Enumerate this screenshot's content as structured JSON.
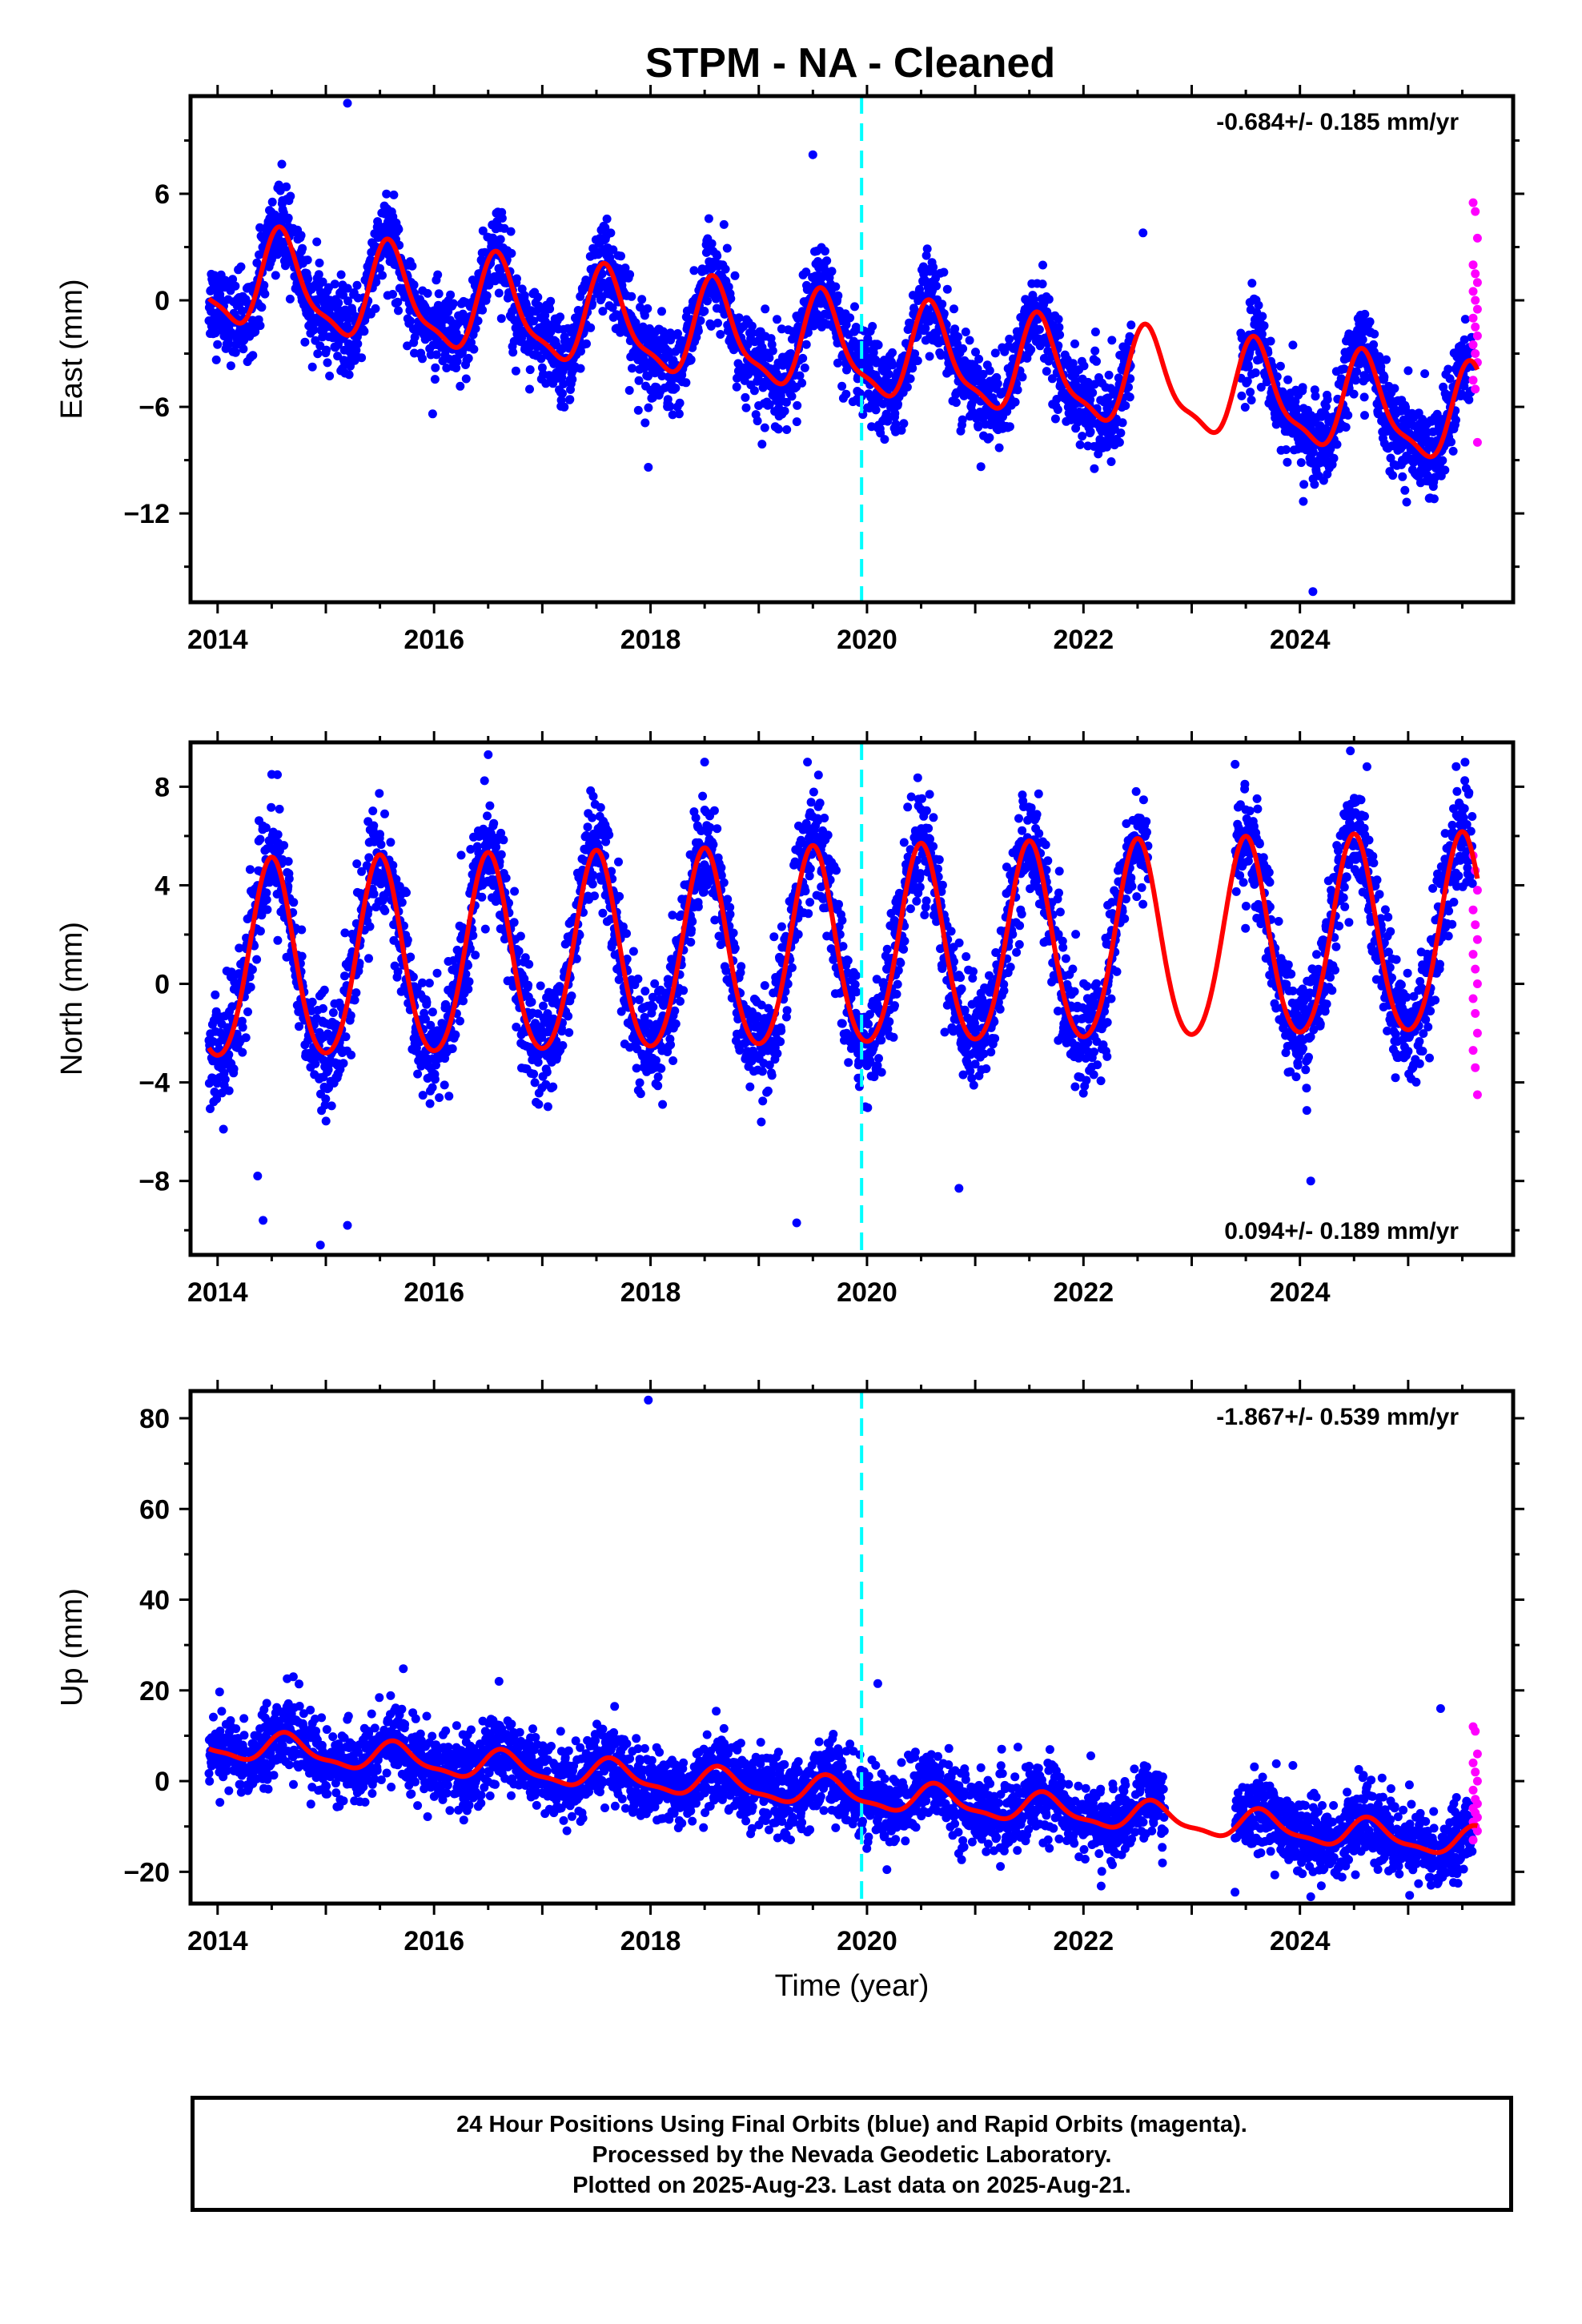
{
  "figure": {
    "title": "STPM  - NA - Cleaned",
    "xlabel": "Time (year)"
  },
  "colors": {
    "final_orbits": "#0000ff",
    "rapid_orbits": "#ff00ff",
    "model": "#ff0000",
    "event_line": "#00ffff"
  },
  "footer": {
    "line1": "24 Hour Positions Using Final Orbits (blue) and Rapid Orbits (magenta).",
    "line2": "Processed by the Nevada Geodetic Laboratory.",
    "line3": "Plotted on 2025-Aug-23. Last data on 2025-Aug-21."
  },
  "chart_data": [
    {
      "type": "scatter",
      "component": "east",
      "ylabel": "East (mm)",
      "rate": "-0.684+/- 0.185 mm/yr",
      "rate_position": "top-right",
      "xlim": [
        2013.75,
        2025.97
      ],
      "ylim": [
        -17,
        11.5
      ],
      "xticks": [
        2014,
        2016,
        2018,
        2020,
        2022,
        2024
      ],
      "yticks": [
        -12,
        -6,
        0,
        6
      ],
      "event_line_x": 2019.95,
      "model": {
        "offset": 1.2,
        "trend": -0.684,
        "annual_amp": 2.6,
        "annual_peak": 0.6,
        "semi_amp": 0.8,
        "semi_peak": 0.55
      },
      "scatter_sd": 1.2,
      "data_start": 2013.92,
      "gap": [
        2022.45,
        2023.45
      ],
      "rapid": {
        "start": 2025.6,
        "end": 2025.64,
        "values": [
          5.5,
          5.0,
          3.5,
          2.0,
          1.5,
          1.0,
          0.5,
          0.0,
          -0.5,
          -1.0,
          -1.5,
          -2.0,
          -2.5,
          -3.0,
          -3.5,
          -4.5,
          -5.0,
          -8.0
        ]
      },
      "outliers": [
        {
          "x": 2015.2,
          "y": 11.1
        },
        {
          "x": 2017.98,
          "y": -9.4
        },
        {
          "x": 2017.95,
          "y": -6.9
        },
        {
          "x": 2019.03,
          "y": -8.1
        },
        {
          "x": 2019.5,
          "y": 8.2
        },
        {
          "x": 2024.12,
          "y": -16.4
        },
        {
          "x": 2024.97,
          "y": -10.7
        },
        {
          "x": 2022.55,
          "y": 3.8
        }
      ]
    },
    {
      "type": "scatter",
      "component": "north",
      "ylabel": "North (mm)",
      "rate": "0.094+/- 0.189 mm/yr",
      "rate_position": "bottom-right",
      "xlim": [
        2013.75,
        2025.97
      ],
      "ylim": [
        -11,
        9.8
      ],
      "xticks": [
        2014,
        2016,
        2018,
        2020,
        2022,
        2024
      ],
      "yticks": [
        -8,
        -4,
        0,
        4,
        8
      ],
      "event_line_x": 2019.95,
      "model": {
        "offset": 0.7,
        "trend": 0.094,
        "annual_amp": 4.0,
        "annual_peak": 0.5,
        "semi_amp": 0.4,
        "semi_peak": 0.5
      },
      "scatter_sd": 1.1,
      "data_start": 2013.92,
      "gap": [
        2022.6,
        2023.4
      ],
      "rapid": {
        "start": 2025.6,
        "end": 2025.64,
        "values": [
          5.2,
          4.6,
          3.8,
          3.0,
          2.4,
          1.8,
          1.2,
          0.6,
          0.0,
          -0.6,
          -1.2,
          -2.0,
          -2.7,
          -3.4,
          -4.5
        ]
      },
      "outliers": [
        {
          "x": 2014.42,
          "y": -9.6
        },
        {
          "x": 2014.37,
          "y": -7.8
        },
        {
          "x": 2014.95,
          "y": -10.6
        },
        {
          "x": 2015.2,
          "y": -9.8
        },
        {
          "x": 2014.5,
          "y": 8.5
        },
        {
          "x": 2016.5,
          "y": 9.3
        },
        {
          "x": 2018.5,
          "y": 9.0
        },
        {
          "x": 2019.45,
          "y": 9.0
        },
        {
          "x": 2019.35,
          "y": -9.7
        },
        {
          "x": 2020.85,
          "y": -8.3
        },
        {
          "x": 2024.1,
          "y": -8.0
        }
      ]
    },
    {
      "type": "scatter",
      "component": "up",
      "ylabel": "Up (mm)",
      "rate": "-1.867+/- 0.539 mm/yr",
      "rate_position": "top-right",
      "xlim": [
        2013.75,
        2025.97
      ],
      "ylim": [
        -27,
        86
      ],
      "xticks": [
        2014,
        2016,
        2018,
        2020,
        2022,
        2024
      ],
      "yticks": [
        -20,
        0,
        20,
        40,
        60,
        80
      ],
      "event_line_x": 2019.95,
      "model": {
        "offset": 8.0,
        "trend": -1.867,
        "annual_amp": 3.0,
        "annual_peak": 0.65,
        "semi_amp": 1.0,
        "semi_peak": 0.6
      },
      "scatter_sd": 4.0,
      "data_start": 2013.92,
      "gap": [
        2022.75,
        2023.4
      ],
      "rapid": {
        "start": 2025.6,
        "end": 2025.64,
        "values": [
          12,
          11,
          6,
          4,
          2,
          0,
          -2,
          -4,
          -5,
          -6,
          -7,
          -8,
          -9,
          -10,
          -11,
          -13
        ]
      },
      "outliers": [
        {
          "x": 2017.98,
          "y": 84
        },
        {
          "x": 2020.1,
          "y": 21.5
        },
        {
          "x": 2023.4,
          "y": -24.5
        },
        {
          "x": 2024.1,
          "y": -25.5
        },
        {
          "x": 2016.6,
          "y": 22
        },
        {
          "x": 2014.7,
          "y": 23
        },
        {
          "x": 2025.3,
          "y": 16
        }
      ]
    }
  ]
}
